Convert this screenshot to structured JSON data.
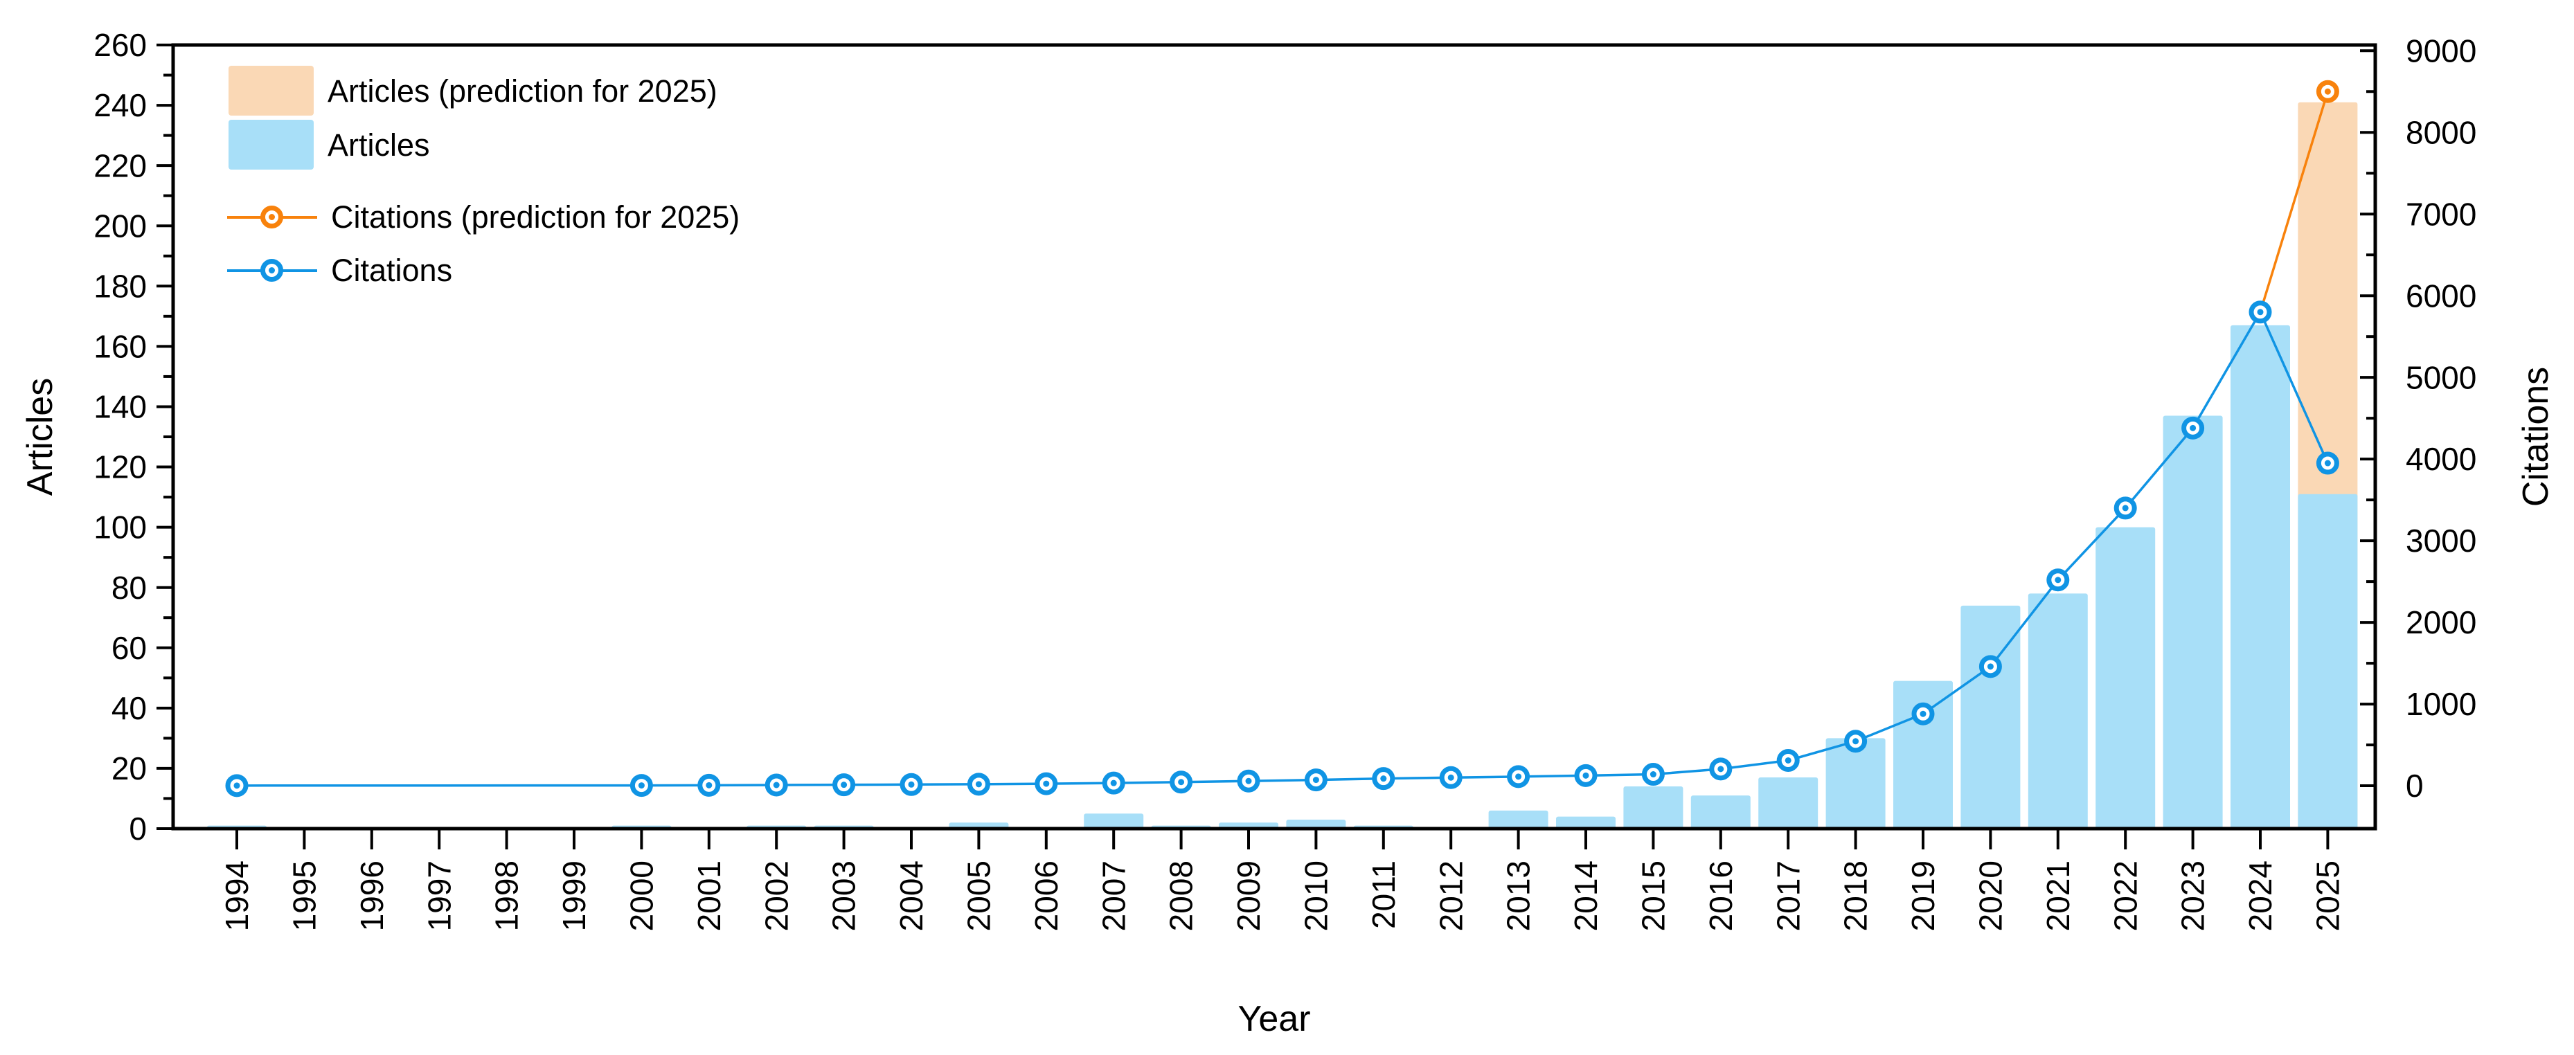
{
  "figure": {
    "background": "#ffffff",
    "text_color": "#000000",
    "frame_color": "#000000"
  },
  "titles": {
    "x": "Year",
    "y_left": "Articles",
    "y_right": "Citations"
  },
  "legend": {
    "position": "top-left-inside",
    "items": [
      {
        "label": "Articles (prediction for 2025)",
        "type": "bar-swatch",
        "color": "#FAD8B5"
      },
      {
        "label": "Articles",
        "type": "bar-swatch",
        "color": "#A8DFF8"
      },
      {
        "label": "Citations (prediction for 2025)",
        "type": "line-marker",
        "color": "#F8820C"
      },
      {
        "label": "Citations",
        "type": "line-marker",
        "color": "#1094E4"
      }
    ]
  },
  "chart_data": {
    "type": "combo-bar-line",
    "title": "",
    "categories": [
      1994,
      1995,
      1996,
      1997,
      1998,
      1999,
      2000,
      2001,
      2002,
      2003,
      2004,
      2005,
      2006,
      2007,
      2008,
      2009,
      2010,
      2011,
      2012,
      2013,
      2014,
      2015,
      2016,
      2017,
      2018,
      2019,
      2020,
      2021,
      2022,
      2023,
      2024,
      2025
    ],
    "series": [
      {
        "name": "Articles (prediction for 2025)",
        "type": "bar",
        "axis": "left",
        "color": "#FAD8B5",
        "values": [
          null,
          null,
          null,
          null,
          null,
          null,
          null,
          null,
          null,
          null,
          null,
          null,
          null,
          null,
          null,
          null,
          null,
          null,
          null,
          null,
          null,
          null,
          null,
          null,
          null,
          null,
          null,
          null,
          null,
          null,
          null,
          241
        ]
      },
      {
        "name": "Articles",
        "type": "bar",
        "axis": "left",
        "color": "#A8DFF8",
        "values": [
          1,
          0,
          0,
          0,
          0,
          0,
          1,
          0,
          1,
          1,
          0,
          2,
          0,
          5,
          1,
          2,
          3,
          1,
          0,
          6,
          4,
          14,
          11,
          17,
          30,
          49,
          74,
          78,
          100,
          137,
          167,
          111
        ]
      },
      {
        "name": "Citations (prediction for 2025)",
        "type": "line",
        "axis": "right",
        "color": "#F8820C",
        "values": [
          null,
          null,
          null,
          null,
          null,
          null,
          null,
          null,
          null,
          null,
          null,
          null,
          null,
          null,
          null,
          null,
          null,
          null,
          null,
          null,
          null,
          null,
          null,
          null,
          null,
          null,
          null,
          null,
          null,
          null,
          5800,
          8500
        ],
        "marker_only_at_last": true
      },
      {
        "name": "Citations",
        "type": "line",
        "axis": "right",
        "color": "#1094E4",
        "values": [
          2,
          null,
          null,
          null,
          null,
          null,
          4,
          6,
          9,
          12,
          15,
          19,
          25,
          33,
          45,
          58,
          72,
          88,
          100,
          112,
          125,
          140,
          205,
          310,
          545,
          880,
          1460,
          2520,
          3400,
          4380,
          5800,
          3950
        ]
      }
    ],
    "axes": {
      "x": {
        "label": "Year",
        "ticks": [
          1994,
          1995,
          1996,
          1997,
          1998,
          1999,
          2000,
          2001,
          2002,
          2003,
          2004,
          2005,
          2006,
          2007,
          2008,
          2009,
          2010,
          2011,
          2012,
          2013,
          2014,
          2015,
          2016,
          2017,
          2018,
          2019,
          2020,
          2021,
          2022,
          2023,
          2024,
          2025
        ]
      },
      "left": {
        "label": "Articles",
        "min": 0,
        "max": 260,
        "tick_step": 20,
        "minor_step": 10,
        "ticks": [
          0,
          20,
          40,
          60,
          80,
          100,
          120,
          140,
          160,
          180,
          200,
          220,
          240,
          260
        ]
      },
      "right": {
        "label": "Citations",
        "tick_step": 1000,
        "minor_step": 500,
        "ticks": [
          0,
          1000,
          2000,
          3000,
          4000,
          5000,
          6000,
          7000,
          8000,
          9000
        ],
        "range_at_plot": [
          -525,
          9070
        ]
      }
    },
    "grid": false,
    "legend_position": "top-left-inside"
  }
}
